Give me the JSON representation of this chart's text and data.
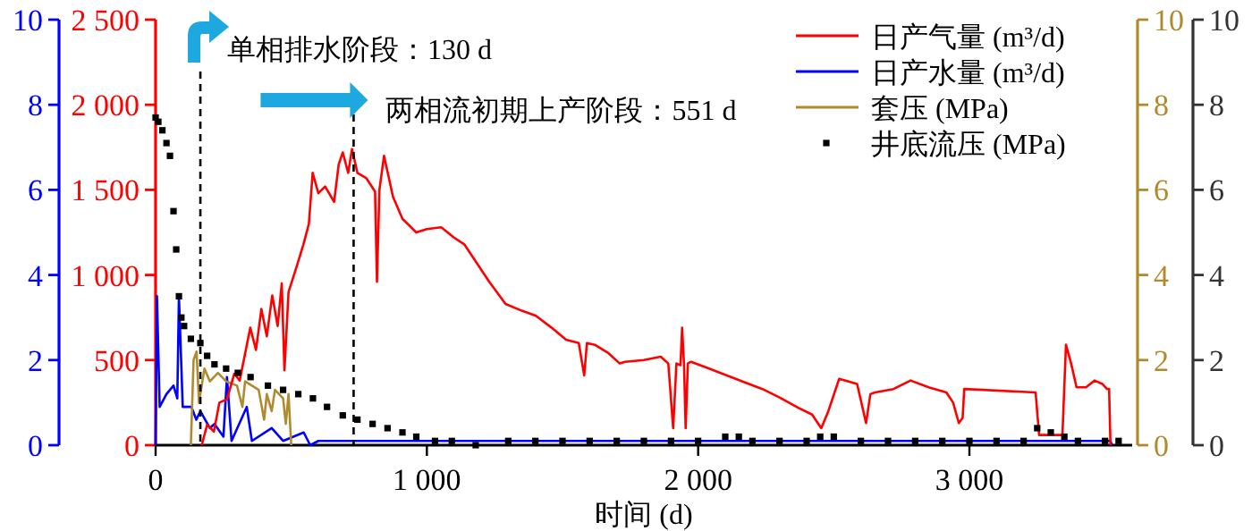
{
  "chart_data": {
    "type": "line",
    "xlabel": "时间 (d)",
    "xlim": [
      0,
      3600
    ],
    "xticks": [
      0,
      {
        "value": 1000,
        "label": "1 000"
      },
      {
        "value": 2000,
        "label": "2 000"
      },
      {
        "value": 3000,
        "label": "3 000"
      }
    ],
    "ylim": [
      0,
      2500
    ],
    "yticks": [
      0,
      500,
      {
        "value": 1000,
        "label": "1 000"
      },
      {
        "value": 1500,
        "label": "1 500"
      },
      {
        "value": 2000,
        "label": "2 000"
      },
      {
        "value": 2500,
        "label": "2 500"
      }
    ],
    "y2lim": [
      0,
      10
    ],
    "y2ticks": [
      0,
      2,
      4,
      6,
      8,
      10
    ],
    "y3lim": [
      0,
      10
    ],
    "y3ticks": [
      0,
      2,
      4,
      6,
      8,
      10
    ],
    "legend": "top right",
    "grid": false,
    "annotations": [
      "0",
      "2",
      "4",
      "6",
      "8",
      "10"
    ],
    "ref_lines": [
      {
        "axis": "x",
        "value": 165,
        "label": "单相排水阶段：130 d",
        "line_style": "dashed",
        "color": "#000000"
      },
      {
        "axis": "x",
        "value": 730,
        "label": "两相流初期上产阶段：551 d",
        "line_style": "dashed",
        "color": "#000000"
      }
    ],
    "series": [
      {
        "name": "日产气量 (m³/d)",
        "color": "#ff0000",
        "x": [
          170,
          190,
          215,
          235,
          263,
          290,
          310,
          349,
          370,
          390,
          410,
          430,
          450,
          465,
          475,
          490,
          520,
          545,
          565,
          579,
          600,
          625,
          658,
          675,
          690,
          710,
          724,
          744,
          776,
          809,
          816,
          825,
          842,
          875,
          910,
          961,
          1000,
          1053,
          1100,
          1138,
          1184,
          1230,
          1290,
          1350,
          1402,
          1460,
          1513,
          1560,
          1580,
          1590,
          1619,
          1670,
          1711,
          1731,
          1800,
          1862,
          1890,
          1908,
          1920,
          1935,
          1941,
          1948,
          1954,
          1962,
          1974,
          2040,
          2106,
          2170,
          2237,
          2300,
          2369,
          2420,
          2454,
          2480,
          2520,
          2586,
          2619,
          2635,
          2652,
          2720,
          2783,
          2850,
          2915,
          2940,
          2961,
          2975,
          2981,
          3244,
          3257,
          3343,
          3356,
          3375,
          3395,
          3430,
          3461,
          3490,
          3507,
          3515,
          3520
        ],
        "values": [
          0,
          120,
          80,
          250,
          270,
          420,
          380,
          690,
          560,
          800,
          640,
          880,
          700,
          950,
          440,
          900,
          1050,
          1180,
          1300,
          1600,
          1480,
          1520,
          1430,
          1650,
          1720,
          1600,
          1740,
          1600,
          1570,
          1490,
          960,
          1500,
          1700,
          1460,
          1330,
          1250,
          1270,
          1280,
          1220,
          1180,
          1070,
          960,
          830,
          790,
          760,
          690,
          620,
          600,
          410,
          600,
          590,
          540,
          480,
          490,
          500,
          520,
          480,
          100,
          480,
          470,
          690,
          470,
          100,
          480,
          490,
          450,
          410,
          370,
          330,
          280,
          220,
          180,
          100,
          200,
          390,
          360,
          130,
          300,
          310,
          330,
          380,
          340,
          310,
          250,
          130,
          160,
          330,
          310,
          60,
          60,
          590,
          480,
          340,
          340,
          380,
          360,
          330,
          330,
          0
        ]
      },
      {
        "name": "日产水量 (m³/d)",
        "axis": "y2",
        "color": "#0000ff",
        "x": [
          0,
          5,
          15,
          40,
          66,
          80,
          86,
          100,
          132,
          150,
          165,
          200,
          217,
          250,
          263,
          280,
          336,
          355,
          428,
          470,
          546,
          570,
          600,
          3520,
          3525
        ],
        "values": [
          0,
          3.5,
          0.9,
          1.2,
          1.4,
          1.1,
          3.5,
          0.9,
          0.9,
          0.6,
          0.8,
          0.4,
          0.5,
          0.2,
          1.6,
          0.1,
          0.9,
          0.1,
          0.4,
          0.1,
          0.3,
          0,
          0.1,
          0.1,
          0
        ]
      },
      {
        "name": "套压 (MPa)",
        "axis": "y3",
        "color": "#b08a2e",
        "x": [
          130,
          140,
          151,
          160,
          180,
          200,
          230,
          260,
          300,
          320,
          330,
          380,
          400,
          410,
          428,
          440,
          470,
          480,
          490,
          500
        ],
        "values": [
          0,
          2.0,
          2.2,
          1.0,
          1.8,
          1.5,
          1.7,
          1.5,
          1.4,
          0.9,
          1.5,
          1.3,
          0.6,
          1.2,
          0.8,
          1.3,
          1.1,
          0.5,
          1.2,
          0
        ]
      },
      {
        "name": "井底流压 (MPa)",
        "type": "scatter",
        "marker": "square",
        "axis": "y3",
        "color": "#000000",
        "x": [
          0,
          10,
          25,
          40,
          53,
          66,
          76,
          86,
          95,
          105,
          130,
          165,
          190,
          217,
          260,
          303,
          350,
          414,
          470,
          526,
          580,
          632,
          690,
          744,
          800,
          855,
          910,
          961,
          1030,
          1092,
          1180,
          1300,
          1400,
          1500,
          1600,
          1700,
          1800,
          1900,
          2000,
          2100,
          2150,
          2200,
          2300,
          2400,
          2450,
          2500,
          2600,
          2700,
          2800,
          2900,
          3000,
          3100,
          3200,
          3250,
          3300,
          3350,
          3400,
          3500,
          3550
        ],
        "values": [
          7.7,
          7.6,
          7.4,
          7.1,
          6.8,
          5.5,
          4.6,
          3.5,
          3.0,
          2.8,
          2.5,
          2.4,
          2.1,
          1.9,
          1.8,
          1.7,
          1.6,
          1.4,
          1.3,
          1.2,
          1.1,
          0.9,
          0.7,
          0.6,
          0.5,
          0.4,
          0.3,
          0.2,
          0.1,
          0.1,
          0,
          0.1,
          0.1,
          0.1,
          0.1,
          0.1,
          0.1,
          0.1,
          0.1,
          0.2,
          0.2,
          0.1,
          0.1,
          0.1,
          0.2,
          0.2,
          0.1,
          0.1,
          0.1,
          0.1,
          0.1,
          0.1,
          0.1,
          0.4,
          0.3,
          0.2,
          0.1,
          0.1,
          0.1
        ]
      }
    ]
  }
}
